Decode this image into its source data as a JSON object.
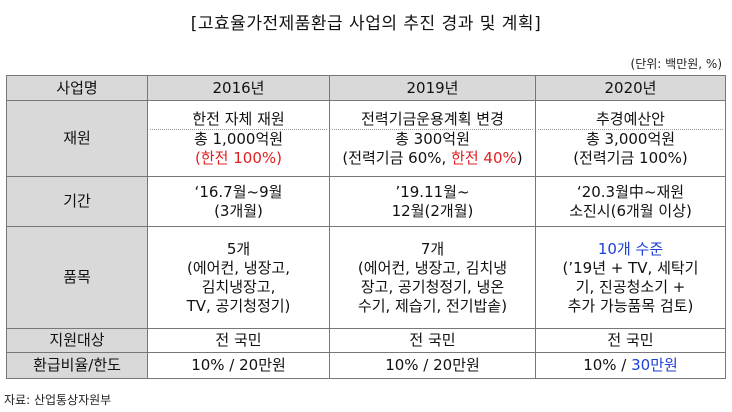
{
  "title": "[고효율가전제품환급 사업의 추진 경과 및 계획]",
  "unit": "(단위: 백만원, %)",
  "header": [
    "사업명",
    "2016년",
    "2019년",
    "2020년"
  ],
  "rows": {
    "funding": {
      "label": "재원",
      "y2016": {
        "line1": "한전 자체 재원",
        "line2": "총 1,000억원",
        "line3": "(한전 100%)"
      },
      "y2019": {
        "line1": "전력기금운용계획 변경",
        "line2": "총 300억원",
        "line3_a": "(전력기금 60%, ",
        "line3_b": "한전 40%",
        "line3_c": ")"
      },
      "y2020": {
        "line1": "추경예산안",
        "line2": "총 3,000억원",
        "line3": "(전력기금 100%)"
      }
    },
    "period": {
      "label": "기간",
      "y2016": {
        "line1": "‘16.7월~9월",
        "line2": "(3개월)"
      },
      "y2019": {
        "line1": "’19.11월~",
        "line2": "12월(2개월)"
      },
      "y2020": {
        "line1": "‘20.3월中~재원",
        "line2": "소진시(6개월 이상)"
      }
    },
    "items": {
      "label": "품목",
      "y2016": {
        "line1": "5개",
        "line2": "(에어컨, 냉장고,",
        "line3": "김치냉장고,",
        "line4": "TV, 공기청정기)"
      },
      "y2019": {
        "line1": "7개",
        "line2": "(에어컨, 냉장고, 김치냉",
        "line3": "장고, 공기청정기, 냉온",
        "line4": "수기, 제습기, 전기밥솥)"
      },
      "y2020": {
        "line1": "10개 수준",
        "line2": "(’19년 + TV, 세탁기",
        "line3": "기, 진공청소기 +",
        "line4": "추가 가능품목 검토)"
      }
    },
    "target": {
      "label": "지원대상",
      "y2016": "전 국민",
      "y2019": "전 국민",
      "y2020": "전 국민"
    },
    "refund": {
      "label": "환급비율/한도",
      "y2016": "10% / 20만원",
      "y2019": "10% / 20만원",
      "y2020_a": "10% / ",
      "y2020_b": "30만원"
    }
  },
  "source": "자료: 산업통상자원부",
  "colors": {
    "header_bg": "#d9d9d9",
    "red": "#e02020",
    "blue": "#1c3fd6",
    "border": "#777777"
  }
}
